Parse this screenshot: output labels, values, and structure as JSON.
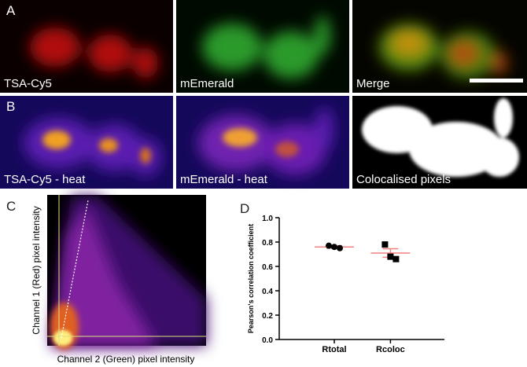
{
  "panel_letters": [
    "A",
    "B",
    "C",
    "D"
  ],
  "image_labels": [
    "TSA-Cy5",
    "mEmerald",
    "Merge",
    "TSA-Cy5 - heat",
    "mEmerald - heat",
    "Colocalised pixels"
  ],
  "scatter_panel": {
    "y_label": "Channel 1 (Red) pixel intensity",
    "x_label": "Channel 2 (Green) pixel intensity"
  },
  "chart_data": {
    "type": "dot",
    "y_label": "Pearson's correlation coefficient",
    "categories": [
      "Rtotal",
      "Rcoloc"
    ],
    "points": [
      [
        0.77,
        0.76,
        0.75
      ],
      [
        0.78,
        0.68,
        0.66
      ]
    ],
    "markers": [
      "circle",
      "square"
    ],
    "color": "#000000",
    "means": [
      0.76,
      0.71
    ],
    "errors": [
      0.01,
      0.035
    ],
    "mean_color": "#f08080",
    "ylim": [
      0,
      1
    ],
    "yticks": [
      {
        "value": 0,
        "label": "0.0"
      },
      {
        "value": 0.2,
        "label": "0.2"
      },
      {
        "value": 0.4,
        "label": "0.4"
      },
      {
        "value": 0.6,
        "label": "0.6"
      },
      {
        "value": 0.8,
        "label": "0.8"
      },
      {
        "value": 1,
        "label": "1.0"
      }
    ]
  }
}
